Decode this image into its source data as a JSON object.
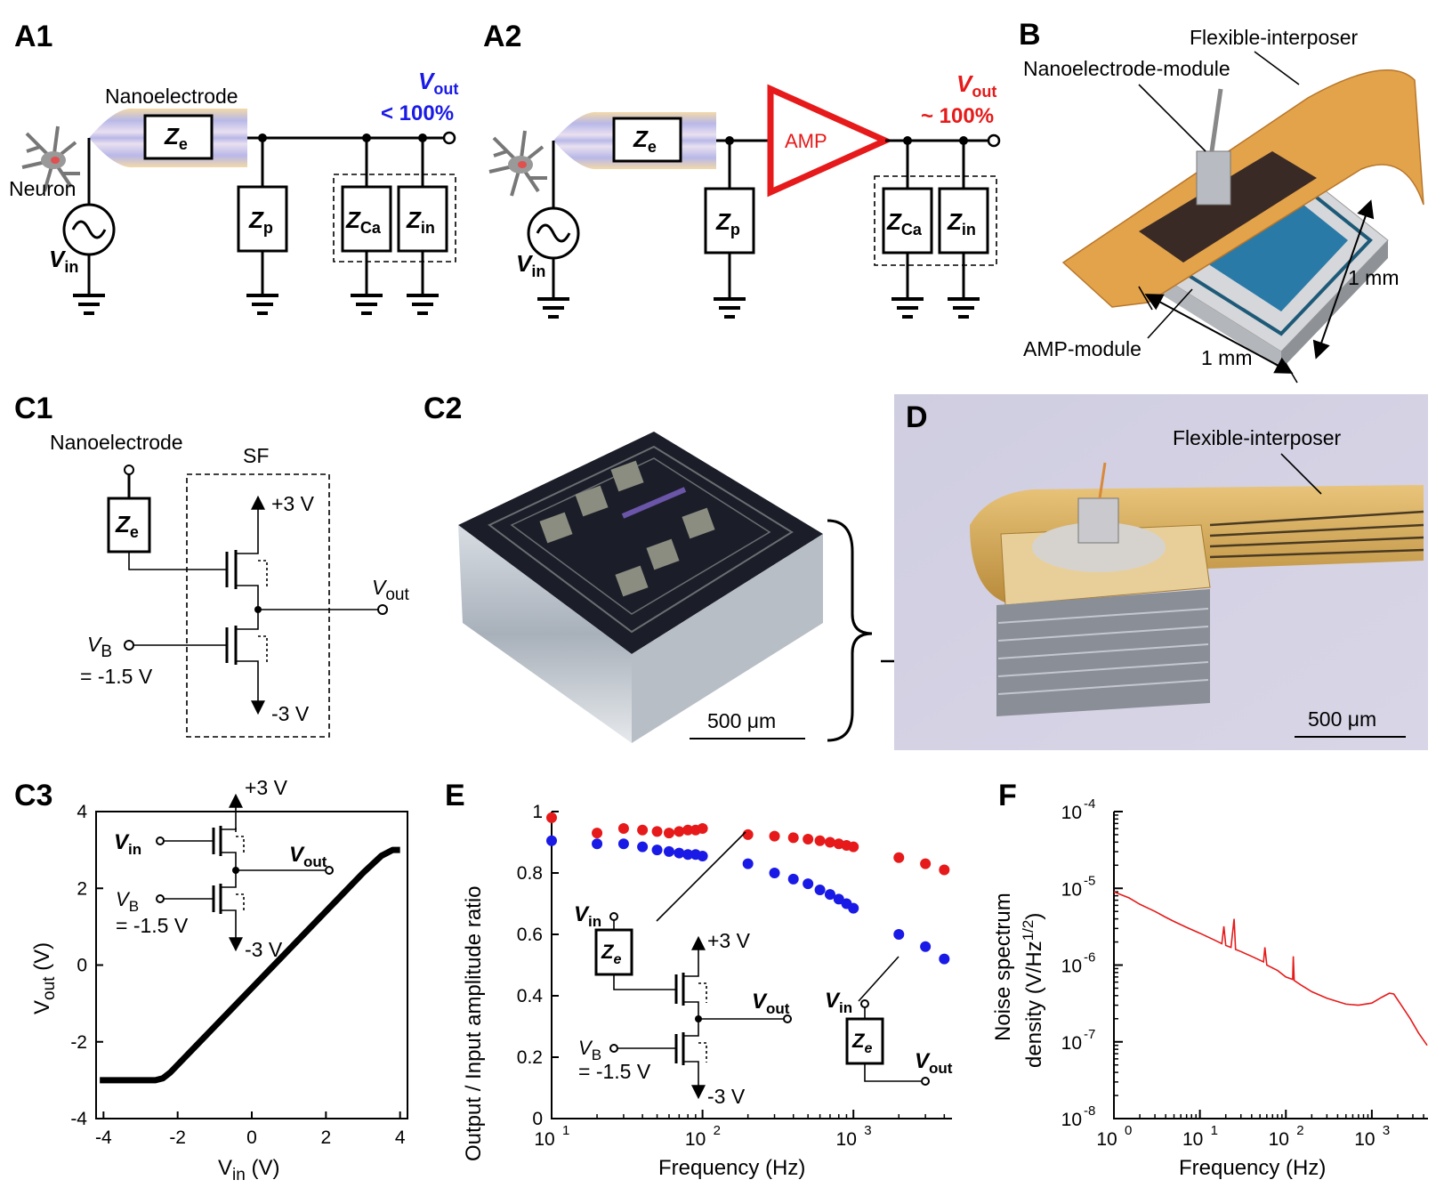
{
  "panels": {
    "A1": {
      "label": "A1",
      "nanoelectrode": "Nanoelectrode",
      "neuron": "Neuron",
      "vin": "V",
      "vin_sub": "in",
      "ze": "Z",
      "ze_sub": "e",
      "zp": "Z",
      "zp_sub": "p",
      "zca": "Z",
      "zca_sub": "Ca",
      "zin": "Z",
      "zin_sub": "in",
      "vout": "V",
      "vout_sub": "out",
      "vout_pct": "< 100%",
      "color": "#1a1ae6"
    },
    "A2": {
      "label": "A2",
      "amp": "AMP",
      "vin": "V",
      "vin_sub": "in",
      "ze": "Z",
      "ze_sub": "e",
      "zp": "Z",
      "zp_sub": "p",
      "zca": "Z",
      "zca_sub": "Ca",
      "zin": "Z",
      "zin_sub": "in",
      "vout": "V",
      "vout_sub": "out",
      "vout_pct": "~ 100%",
      "color": "#e61a1a"
    },
    "B": {
      "label": "B",
      "flex": "Flexible-interposer",
      "nano": "Nanoelectrode-module",
      "amp": "AMP-module",
      "dim1": "1 mm",
      "dim2": "1 mm"
    },
    "C1": {
      "label": "C1",
      "nano": "Nanoelectrode",
      "sf": "SF",
      "ze": "Z",
      "ze_sub": "e",
      "vdd": "+3 V",
      "vss": "-3 V",
      "vout": "V",
      "vout_sub": "out",
      "vb": "V",
      "vb_sub": "B",
      "vb_val": "= -1.5 V"
    },
    "C2": {
      "label": "C2",
      "scale": "500 μm"
    },
    "D": {
      "label": "D",
      "flex": "Flexible-interposer",
      "scale": "500 μm"
    },
    "C3": {
      "label": "C3",
      "vdd": "+3 V",
      "vss": "-3 V",
      "vin": "V",
      "vin_sub": "in",
      "vout": "V",
      "vout_sub": "out",
      "vb": "V",
      "vb_sub": "B",
      "vb_val": "= -1.5 V",
      "xlabel": "V",
      "xlabel_sub": "in",
      "xlabel_unit": " (V)",
      "ylabel": "V",
      "ylabel_sub": "out",
      "ylabel_unit": " (V)",
      "xticks": [
        "-4",
        "-2",
        "0",
        "2",
        "4"
      ],
      "yticks": [
        "-4",
        "-2",
        "0",
        "2",
        "4"
      ]
    },
    "E": {
      "label": "E",
      "xlabel": "Frequency (Hz)",
      "ylabel": "Output / Input amplitude ratio",
      "yticks": [
        "0",
        "0.2",
        "0.4",
        "0.6",
        "0.8",
        "1"
      ],
      "xticks": [
        "10",
        "10",
        "10"
      ],
      "xtick_exp": [
        "1",
        "2",
        "3"
      ],
      "vdd": "+3 V",
      "vss": "-3 V",
      "vin": "V",
      "vin_sub": "in",
      "vout": "V",
      "vout_sub": "out",
      "vb": "V",
      "vb_sub": "B",
      "vb_val": "= -1.5 V",
      "ze": "Z",
      "ze_sub": "e"
    },
    "F": {
      "label": "F",
      "xlabel": "Frequency (Hz)",
      "ylabel1": "Noise spectrum",
      "ylabel2": "density (V/Hz",
      "ylabel2_exp": "1/2",
      "ylabel2_end": ")",
      "xticks": [
        "10",
        "10",
        "10",
        "10"
      ],
      "xtick_exp": [
        "0",
        "1",
        "2",
        "3"
      ],
      "yticks": [
        "10",
        "10",
        "10",
        "10",
        "10"
      ],
      "ytick_exp": [
        "-8",
        "-7",
        "-6",
        "-5",
        "-4"
      ]
    }
  },
  "chart_data": [
    {
      "type": "line",
      "panel": "C3",
      "xlabel": "Vin (V)",
      "ylabel": "Vout (V)",
      "xlim": [
        -4.2,
        4.2
      ],
      "ylim": [
        -4,
        4
      ],
      "series": [
        {
          "x": [
            -4.1,
            -3.5,
            -3.0,
            -2.6,
            -2.4,
            -2.2,
            -2.0,
            -1.5,
            -1.0,
            -0.5,
            0.0,
            0.5,
            1.0,
            1.5,
            2.0,
            2.5,
            3.0,
            3.5,
            3.8,
            4.0
          ],
          "y": [
            -3.0,
            -3.0,
            -3.0,
            -3.0,
            -2.95,
            -2.8,
            -2.6,
            -2.1,
            -1.6,
            -1.1,
            -0.6,
            -0.1,
            0.4,
            0.9,
            1.4,
            1.9,
            2.4,
            2.85,
            3.0,
            3.0
          ]
        }
      ],
      "color": "#000000"
    },
    {
      "type": "scatter",
      "panel": "E",
      "xlabel": "Frequency (Hz)",
      "ylabel": "Output / Input amplitude ratio",
      "xscale": "log",
      "xlim": [
        10,
        4500
      ],
      "ylim": [
        0,
        1
      ],
      "series": [
        {
          "color": "#e61a1a",
          "x": [
            10,
            20,
            30,
            40,
            50,
            60,
            70,
            80,
            90,
            100,
            200,
            300,
            400,
            500,
            600,
            700,
            800,
            900,
            1000,
            2000,
            3000,
            4000
          ],
          "y": [
            0.98,
            0.93,
            0.945,
            0.94,
            0.935,
            0.93,
            0.935,
            0.94,
            0.94,
            0.945,
            0.925,
            0.92,
            0.915,
            0.91,
            0.905,
            0.9,
            0.895,
            0.89,
            0.885,
            0.85,
            0.83,
            0.81
          ]
        },
        {
          "color": "#1a1ae6",
          "x": [
            10,
            20,
            30,
            40,
            50,
            60,
            70,
            80,
            90,
            100,
            200,
            300,
            400,
            500,
            600,
            700,
            800,
            900,
            1000,
            2000,
            3000,
            4000
          ],
          "y": [
            0.905,
            0.895,
            0.895,
            0.885,
            0.875,
            0.87,
            0.865,
            0.86,
            0.86,
            0.855,
            0.83,
            0.8,
            0.78,
            0.765,
            0.745,
            0.73,
            0.715,
            0.7,
            0.685,
            0.6,
            0.56,
            0.52
          ]
        }
      ]
    },
    {
      "type": "line",
      "panel": "F",
      "xlabel": "Frequency (Hz)",
      "ylabel": "Noise spectrum density (V/Hz^1/2)",
      "xscale": "log",
      "yscale": "log",
      "xlim": [
        1,
        4500
      ],
      "ylim": [
        1e-08,
        0.0001
      ],
      "color": "#e61a1a",
      "series": [
        {
          "x": [
            1,
            1.5,
            2,
            3,
            4,
            5,
            7,
            10,
            15,
            18,
            19,
            20,
            23,
            25,
            26,
            30,
            40,
            55,
            57,
            60,
            80,
            100,
            120,
            122,
            125,
            150,
            200,
            300,
            500,
            700,
            1000,
            1300,
            1600,
            1800,
            2200,
            2800,
            3500,
            4400
          ],
          "y": [
            9e-06,
            7.5e-06,
            6.2e-06,
            5e-06,
            4.2e-06,
            3.7e-06,
            3.1e-06,
            2.6e-06,
            2.1e-06,
            1.9e-06,
            3.2e-06,
            1.8e-06,
            1.7e-06,
            4e-06,
            1.6e-06,
            1.5e-06,
            1.3e-06,
            1.1e-06,
            1.7e-06,
            1e-06,
            8.5e-07,
            7e-07,
            6.5e-07,
            1.3e-06,
            6.3e-07,
            5.5e-07,
            4.5e-07,
            3.7e-07,
            3.1e-07,
            3e-07,
            3.2e-07,
            3.8e-07,
            4.3e-07,
            4.2e-07,
            3e-07,
            2e-07,
            1.3e-07,
            9e-08
          ]
        }
      ]
    }
  ]
}
